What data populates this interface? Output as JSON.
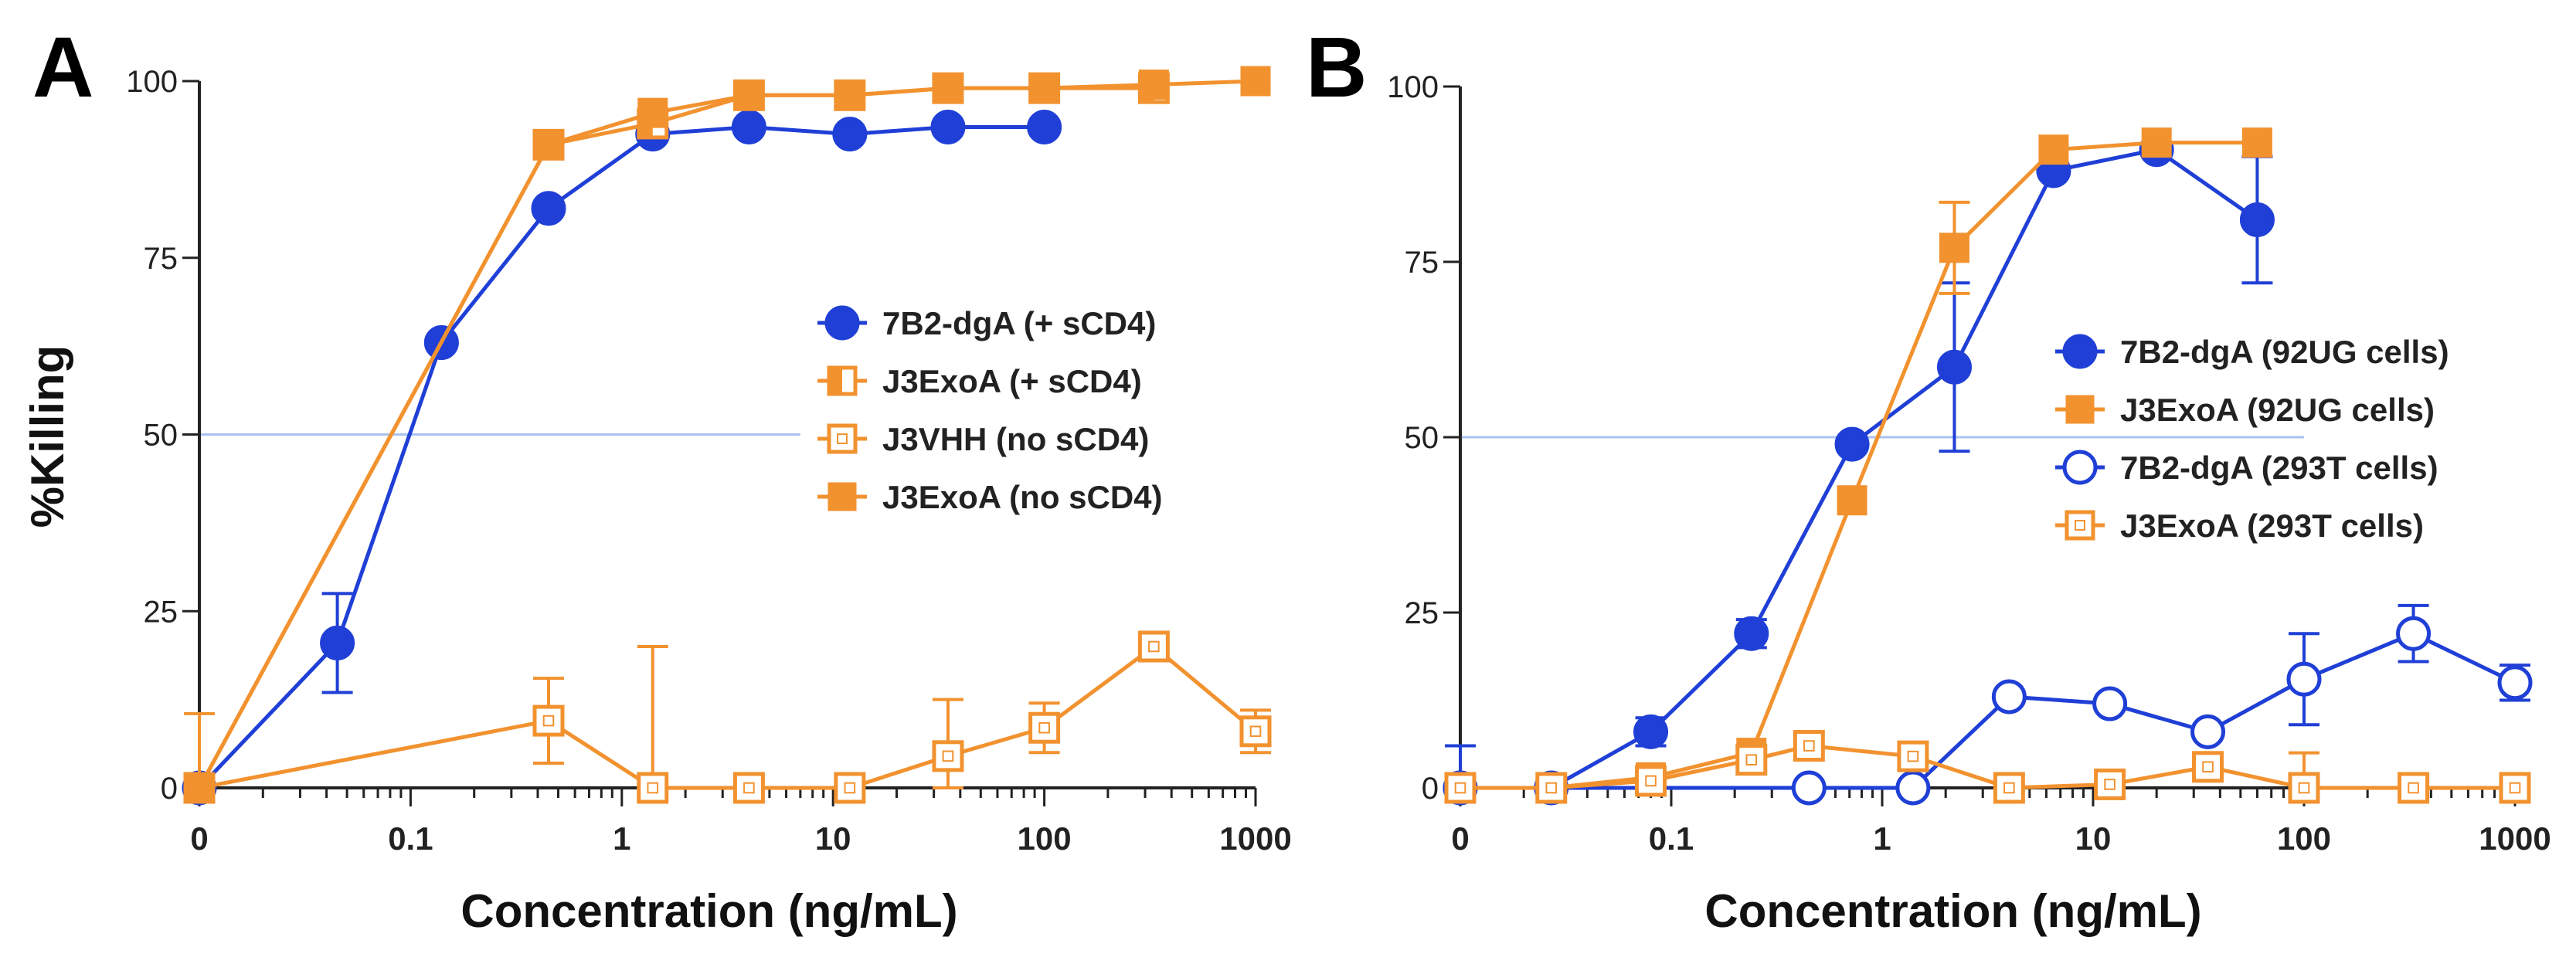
{
  "colors": {
    "blue": "#1f3fd6",
    "orange": "#f2922f",
    "refline": "#a9c2ef"
  },
  "chart_data": [
    {
      "panel_label": "A",
      "type": "line",
      "xscale": "log",
      "ylim": [
        0,
        100
      ],
      "xlabel": "Concentration (ng/mL)",
      "ylabel": "%Killing",
      "yticks": [
        0,
        25,
        50,
        75,
        100
      ],
      "xticks": [
        {
          "value": 0.01,
          "label": "0"
        },
        {
          "value": 0.1,
          "label": "0.1"
        },
        {
          "value": 1,
          "label": "1"
        },
        {
          "value": 10,
          "label": "10"
        },
        {
          "value": 100,
          "label": "100"
        },
        {
          "value": 1000,
          "label": "1000"
        }
      ],
      "reference_line": {
        "y": 50,
        "x_end": 7
      },
      "legend": {
        "position": "center-right"
      },
      "series": [
        {
          "name": "7B2-dgA (+ sCD4)",
          "color": "#1f3fd6",
          "marker": "circle",
          "fill": "solid",
          "x": [
            0.01,
            0.045,
            0.14,
            0.45,
            1.4,
            4,
            12,
            35,
            100
          ],
          "y": [
            0,
            20.5,
            63,
            82,
            92.5,
            93.5,
            92.5,
            93.5,
            93.5
          ],
          "err": [
            0,
            7,
            0,
            0,
            0,
            0,
            0,
            0,
            0
          ]
        },
        {
          "name": "J3ExoA (+ sCD4)",
          "color": "#f2922f",
          "marker": "square",
          "fill": "half",
          "x": [
            0.01,
            0.45,
            1.4,
            4,
            12,
            35,
            100,
            330
          ],
          "y": [
            0,
            91,
            94,
            98,
            98,
            99,
            99,
            99
          ],
          "err": [
            0,
            0,
            0,
            0,
            0,
            0,
            0,
            0
          ]
        },
        {
          "name": "J3VHH (no sCD4)",
          "color": "#f2922f",
          "marker": "square",
          "fill": "open",
          "x": [
            0.01,
            0.45,
            1.4,
            4,
            12,
            35,
            100,
            330,
            1000
          ],
          "y": [
            0,
            9.5,
            0,
            0,
            0,
            4.5,
            8.5,
            20,
            8
          ],
          "err": [
            10.5,
            6,
            20,
            2,
            1,
            8,
            3.5,
            0,
            3
          ]
        },
        {
          "name": "J3ExoA (no sCD4)",
          "color": "#f2922f",
          "marker": "square",
          "fill": "solid",
          "x": [
            0.01,
            0.45,
            1.4,
            4,
            12,
            35,
            100,
            330,
            1000
          ],
          "y": [
            0,
            91,
            95.5,
            98,
            98,
            99,
            99,
            99.5,
            100
          ],
          "err": [
            0,
            0,
            0,
            0,
            0,
            0,
            0,
            0,
            0
          ]
        }
      ]
    },
    {
      "panel_label": "B",
      "type": "line",
      "xscale": "log",
      "ylim": [
        0,
        100
      ],
      "xlabel": "Concentration (ng/mL)",
      "ylabel": "",
      "yticks": [
        0,
        25,
        50,
        75,
        100
      ],
      "xticks": [
        {
          "value": 0.01,
          "label": "0"
        },
        {
          "value": 0.1,
          "label": "0.1"
        },
        {
          "value": 1,
          "label": "1"
        },
        {
          "value": 10,
          "label": "10"
        },
        {
          "value": 100,
          "label": "100"
        },
        {
          "value": 1000,
          "label": "1000"
        }
      ],
      "reference_line": {
        "y": 50,
        "x_end": 100
      },
      "legend": {
        "position": "center-right"
      },
      "series": [
        {
          "name": "7B2-dgA (92UG cells)",
          "color": "#1f3fd6",
          "marker": "circle",
          "fill": "solid",
          "x": [
            0.01,
            0.027,
            0.08,
            0.24,
            0.72,
            2.2,
            6.5,
            20,
            60
          ],
          "y": [
            0,
            0,
            8,
            22,
            49,
            60,
            88,
            91,
            81
          ],
          "err": [
            6,
            0,
            2,
            2,
            1,
            12,
            1,
            1,
            9
          ]
        },
        {
          "name": "J3ExoA  (92UG cells)",
          "color": "#f2922f",
          "marker": "square",
          "fill": "solid",
          "x": [
            0.01,
            0.027,
            0.08,
            0.24,
            0.72,
            2.2,
            6.5,
            20,
            60
          ],
          "y": [
            0,
            0,
            1.5,
            5,
            41,
            77,
            91,
            92,
            92
          ],
          "err": [
            0,
            0,
            0,
            0,
            0,
            6.5,
            0,
            0,
            0
          ]
        },
        {
          "name": "7B2-dgA (293T cells)",
          "color": "#1f3fd6",
          "marker": "circle",
          "fill": "open",
          "x": [
            0.01,
            0.45,
            1.4,
            4,
            12,
            35,
            100,
            330,
            1000
          ],
          "y": [
            0,
            0,
            0,
            13,
            12,
            8,
            15.5,
            22,
            15
          ],
          "err": [
            0,
            0,
            6,
            0,
            0,
            0,
            6.5,
            4,
            2.5
          ]
        },
        {
          "name": "J3ExoA  (293T cells)",
          "color": "#f2922f",
          "marker": "square",
          "fill": "open",
          "x": [
            0.01,
            0.027,
            0.08,
            0.24,
            0.45,
            1.4,
            4,
            12,
            35,
            100,
            330,
            1000
          ],
          "y": [
            0,
            0,
            1,
            4,
            6,
            4.5,
            0,
            0.5,
            3,
            0,
            0,
            0
          ],
          "err": [
            0,
            0,
            0,
            0,
            0,
            2,
            0,
            0,
            0,
            5,
            0,
            0
          ]
        }
      ]
    }
  ]
}
